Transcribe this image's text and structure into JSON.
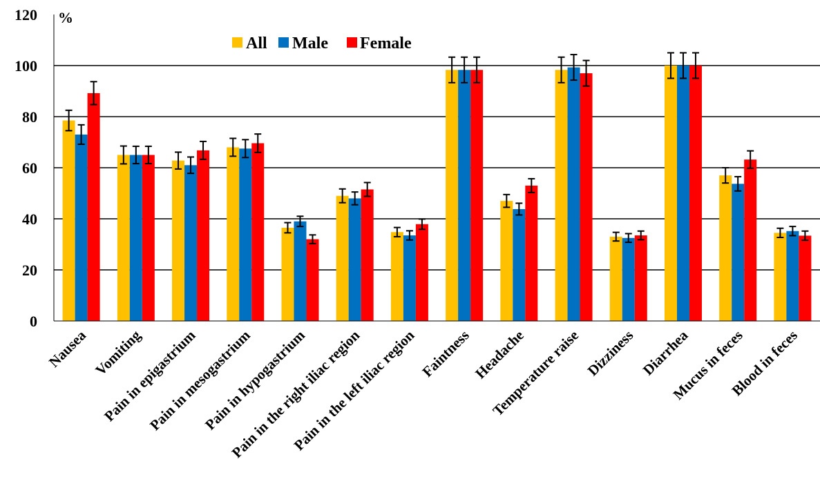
{
  "chart_data": {
    "type": "bar",
    "unit_label": "%",
    "ylim": [
      0,
      120
    ],
    "y_ticks": [
      0,
      20,
      40,
      60,
      80,
      100,
      120
    ],
    "grid": true,
    "legend_position": "top-center",
    "categories": [
      "Nausea",
      "Vomiting",
      "Pain in epigastrium",
      "Pain in mesogastrium",
      "Pain in hypogastrium",
      "Pain in the right iliac region",
      "Pain in the left iliac region",
      "Faintness",
      "Headache",
      "Temperature raise",
      "Dizziness",
      "Diarrhea",
      "Mucus in feces",
      "Blood in feces"
    ],
    "series": [
      {
        "name": "All",
        "color": "#FFC000",
        "values": [
          78.5,
          65,
          62.8,
          68,
          36.5,
          49,
          34.8,
          98.3,
          47,
          98.3,
          33,
          100,
          57,
          34.5
        ],
        "errors": [
          4,
          3.5,
          3.3,
          3.5,
          2,
          2.7,
          1.8,
          5,
          2.5,
          5,
          1.7,
          5,
          3,
          1.8
        ]
      },
      {
        "name": "Male",
        "color": "#0070C0",
        "values": [
          73,
          65,
          61,
          67.5,
          39,
          48,
          33.5,
          98.3,
          43.8,
          99.3,
          32.5,
          100,
          53.7,
          35.2
        ],
        "errors": [
          3.8,
          3.4,
          3.2,
          3.5,
          2,
          2.5,
          1.8,
          5,
          2.3,
          5,
          1.7,
          5,
          2.8,
          1.8
        ]
      },
      {
        "name": "Female",
        "color": "#FF0000",
        "values": [
          89.2,
          65,
          66.8,
          69.6,
          32,
          51.5,
          37.9,
          98.3,
          53,
          97,
          33.5,
          100,
          63.2,
          33.4
        ],
        "errors": [
          4.5,
          3.4,
          3.5,
          3.6,
          1.7,
          2.7,
          2,
          5,
          2.7,
          5,
          1.7,
          5,
          3.4,
          1.8
        ]
      }
    ]
  }
}
